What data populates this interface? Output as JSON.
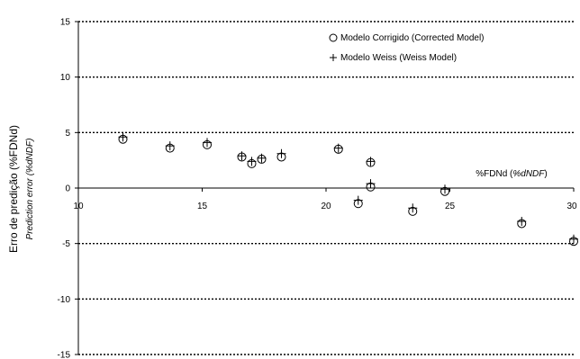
{
  "chart_data": {
    "type": "scatter",
    "xlabel_main": "%FDNd (",
    "xlabel_italic": "%dNDF",
    "xlabel_close": ")",
    "ylabel_main": "Erro de predição (%FDNd)",
    "ylabel_sub": "Prediction error  (%dNDF)",
    "xlim": [
      10,
      30
    ],
    "ylim": [
      -15,
      15
    ],
    "x_ticks": [
      10,
      15,
      20,
      25,
      30
    ],
    "y_ticks": [
      15,
      10,
      5,
      0,
      -5,
      -10,
      -15
    ],
    "grid": "horizontal-dotted",
    "legend_position": "top-right",
    "series": [
      {
        "name": "Modelo Corrigido (Corrected Model)",
        "marker": "circle",
        "x": [
          11.8,
          13.7,
          15.2,
          16.6,
          17.0,
          17.4,
          18.2,
          20.5,
          21.8,
          21.3,
          21.8,
          23.5,
          24.8,
          27.9,
          30.0
        ],
        "y": [
          4.4,
          3.6,
          3.9,
          2.8,
          2.2,
          2.6,
          2.8,
          3.5,
          2.3,
          -1.4,
          0.1,
          -2.1,
          -0.3,
          -3.2,
          -4.8
        ]
      },
      {
        "name": "Modelo Weiss (Weiss Model)",
        "marker": "plus",
        "x": [
          11.8,
          13.7,
          15.2,
          16.6,
          17.0,
          17.4,
          18.2,
          20.5,
          21.8,
          21.3,
          21.8,
          23.5,
          24.8,
          27.9,
          30.0
        ],
        "y": [
          4.6,
          3.8,
          4.1,
          2.9,
          2.4,
          2.7,
          3.1,
          3.6,
          2.4,
          -1.1,
          0.4,
          -1.8,
          -0.1,
          -3.0,
          -4.6
        ]
      }
    ]
  }
}
